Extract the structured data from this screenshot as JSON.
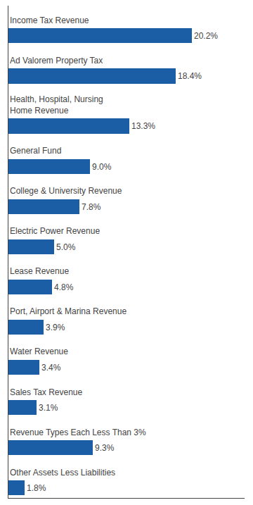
{
  "chart_data": {
    "type": "bar",
    "orientation": "horizontal",
    "categories": [
      "Income Tax Revenue",
      "Ad Valorem Property Tax",
      "Health, Hospital, Nursing\nHome Revenue",
      "General Fund",
      "College & University Revenue",
      "Electric Power Revenue",
      "Lease Revenue",
      "Port, Airport & Marina Revenue",
      "Water Revenue",
      "Sales Tax Revenue",
      "Revenue Types Each Less Than 3%",
      "Other Assets Less Liabilities"
    ],
    "values": [
      20.2,
      18.4,
      13.3,
      9.0,
      7.8,
      5.0,
      4.8,
      3.9,
      3.4,
      3.1,
      9.3,
      1.8
    ],
    "value_labels": [
      "20.2%",
      "18.4%",
      "13.3%",
      "9.0%",
      "7.8%",
      "5.0%",
      "4.8%",
      "3.9%",
      "3.4%",
      "3.1%",
      "9.3%",
      "1.8%"
    ],
    "data_labels": true,
    "color": "#1B5EA6",
    "xlim": [
      0,
      26
    ],
    "xticks": [],
    "grid": false,
    "tick_labels": false
  }
}
